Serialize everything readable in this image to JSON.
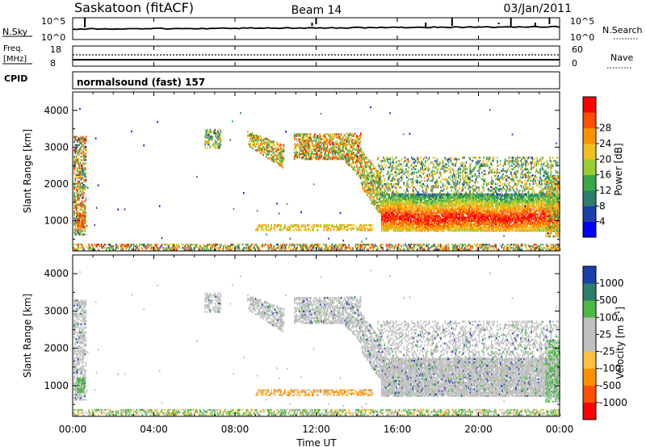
{
  "header": {
    "station": "Saskatoon (fitACF)",
    "beam": "Beam 14",
    "date": "03/Jan/2011"
  },
  "noise_panel": {
    "left_label": "N.Sky",
    "right_label": "N.Search",
    "left_ticks": [
      "10^5",
      "10^0"
    ],
    "right_ticks": [
      "10^5",
      "10^0"
    ]
  },
  "freq_panel": {
    "left_label_1": "Freq.",
    "left_label_2": "[MHz]",
    "right_label": "Nave",
    "left_ticks": [
      "18",
      "8"
    ],
    "right_ticks": [
      "60",
      "0"
    ]
  },
  "cpid": {
    "label": "CPID",
    "value": "normalsound (fast) 157"
  },
  "colors": {
    "power": [
      "#0000ff",
      "#1c3fa8",
      "#2e7d6b",
      "#3aa84a",
      "#9acd32",
      "#f0c020",
      "#ff9000",
      "#ff5000",
      "#ff0000"
    ],
    "velocity_pos": [
      "#1c3fa8",
      "#2e7d6b",
      "#4cb848"
    ],
    "velocity_ground": "#c0c0c0",
    "velocity_neg": [
      "#ffc040",
      "#ff9000",
      "#ff5000",
      "#ff0000"
    ]
  },
  "chart_data": [
    {
      "type": "heatmap",
      "name": "power",
      "ylabel": "Slant Range [km]",
      "xlabel": "Time UT",
      "xlim": [
        0,
        24
      ],
      "ylim": [
        180,
        4500
      ],
      "y_ticks": [
        1000,
        2000,
        3000,
        4000
      ],
      "x_ticks": [
        0,
        4,
        8,
        12,
        16,
        20,
        24
      ],
      "x_tick_labels": [
        "00:00",
        "04:00",
        "08:00",
        "12:00",
        "16:00",
        "20:00",
        "00:00"
      ],
      "colorbar": {
        "label": "Power [dB]",
        "tick_labels": [
          "4",
          "8",
          "12",
          "16",
          "20",
          "24",
          "28"
        ]
      }
    },
    {
      "type": "heatmap",
      "name": "velocity",
      "ylabel": "Slant Range [km]",
      "xlabel": "Time UT",
      "xlim": [
        0,
        24
      ],
      "ylim": [
        180,
        4500
      ],
      "y_ticks": [
        1000,
        2000,
        3000,
        4000
      ],
      "x_ticks": [
        0,
        4,
        8,
        12,
        16,
        20,
        24
      ],
      "x_tick_labels": [
        "00:00",
        "04:00",
        "08:00",
        "12:00",
        "16:00",
        "20:00",
        "00:00"
      ],
      "colorbar": {
        "label": "Velocity [m s",
        "label_sup": "-1",
        "label_end": "]",
        "tick_labels": [
          "1000",
          "500",
          "100",
          "25",
          "-25",
          "-100",
          "-500",
          "-1000"
        ]
      }
    }
  ]
}
